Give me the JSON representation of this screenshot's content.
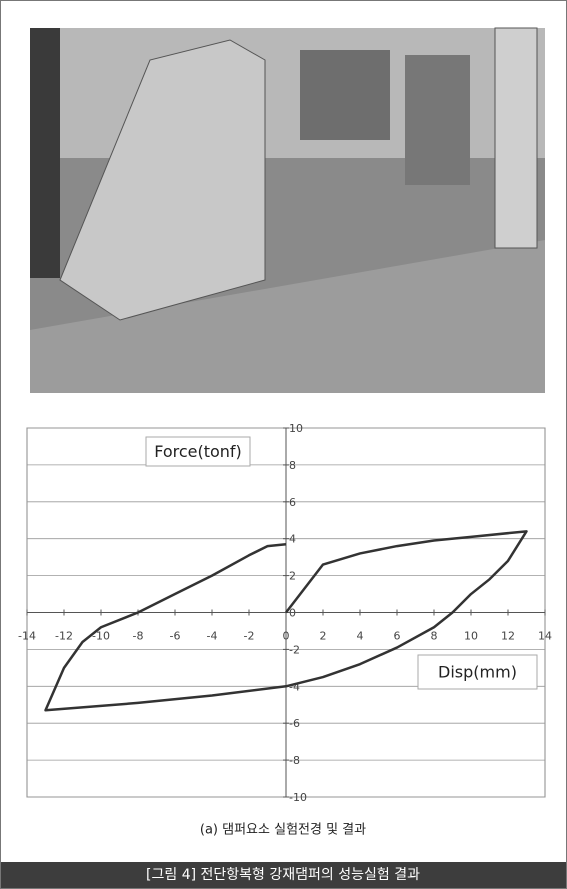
{
  "chart_data": {
    "type": "line",
    "annotations": [
      "Force(tonf)",
      "Disp(mm)"
    ],
    "xlim": [
      -14,
      14
    ],
    "ylim": [
      -10,
      10
    ],
    "xticks": [
      -14,
      -12,
      -10,
      -8,
      -6,
      -4,
      -2,
      0,
      2,
      4,
      6,
      8,
      10,
      12,
      14
    ],
    "yticks": [
      -10,
      -8,
      -6,
      -4,
      -2,
      0,
      2,
      4,
      6,
      8,
      10
    ],
    "grid": true,
    "series": [
      {
        "color": "#333333",
        "x": [
          0,
          2,
          4,
          6,
          8,
          10,
          13,
          12,
          11,
          10,
          9,
          8,
          6,
          4,
          2,
          0,
          -4,
          -8,
          -13,
          -12,
          -11,
          -10,
          -8,
          -6,
          -4,
          -2,
          -1,
          0
        ],
        "values": [
          0,
          2.6,
          3.2,
          3.6,
          3.9,
          4.1,
          4.4,
          2.8,
          1.8,
          1,
          0,
          -0.8,
          -1.9,
          -2.8,
          -3.5,
          -4,
          -4.5,
          -4.9,
          -5.3,
          -3,
          -1.6,
          -0.8,
          0,
          1,
          2,
          3.1,
          3.6,
          3.7
        ]
      }
    ]
  },
  "caption": "(a) 댐퍼요소 실험전경 및 결과",
  "figure_title": "[그림 4] 전단항복형 강재댐퍼의 성능실험 결과"
}
